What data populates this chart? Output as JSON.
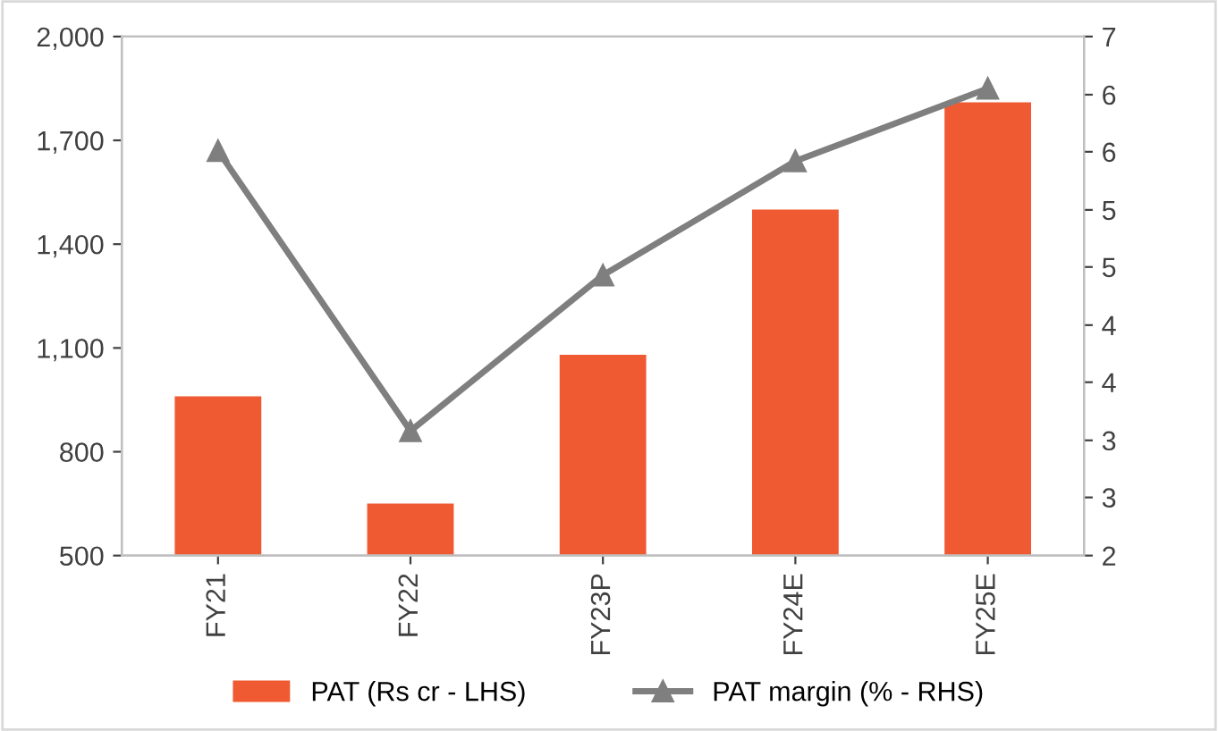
{
  "chart_data": {
    "type": "bar",
    "categories": [
      "FY21",
      "FY22",
      "FY23P",
      "FY24E",
      "FY25E"
    ],
    "series": [
      {
        "name": "PAT (Rs cr - LHS)",
        "color": "#f05a33",
        "values": [
          960,
          650,
          1080,
          1500,
          1810
        ]
      },
      {
        "name": "PAT margin (% - RHS)",
        "type": "line",
        "axis": "y2",
        "color": "#7f7f7f",
        "marker": "triangle",
        "values": [
          5.9,
          3.2,
          4.7,
          5.8,
          6.5
        ]
      }
    ],
    "ylim": [
      500,
      2000
    ],
    "yticks": [
      {
        "value": 500,
        "label": "500"
      },
      {
        "value": 800,
        "label": "800"
      },
      {
        "value": 1100,
        "label": "1,100"
      },
      {
        "value": 1400,
        "label": "1,400"
      },
      {
        "value": 1700,
        "label": "1,700"
      },
      {
        "value": 2000,
        "label": "2,000"
      }
    ],
    "y2lim": [
      2,
      7
    ],
    "y2ticks": [
      2,
      {
        "value": 2.56,
        "label": "3"
      },
      {
        "value": 3.11,
        "label": "3"
      },
      {
        "value": 3.67,
        "label": "4"
      },
      {
        "value": 4.22,
        "label": "4"
      },
      {
        "value": 4.78,
        "label": "5"
      },
      {
        "value": 5.33,
        "label": "5"
      },
      {
        "value": 5.89,
        "label": "6"
      },
      {
        "value": 6.44,
        "label": "6"
      },
      7
    ],
    "legend": "bottom",
    "grid": false
  }
}
